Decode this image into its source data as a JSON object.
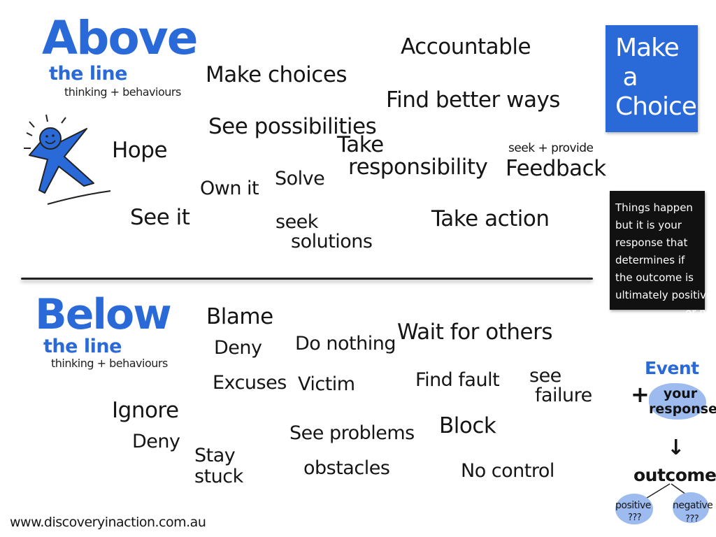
{
  "above": {
    "title": "Above",
    "subtitle": "the line",
    "caption": "thinking + behaviours",
    "words": {
      "accountable": "Accountable",
      "make_choices": "Make choices",
      "find_better_ways": "Find better ways",
      "see_possibilities": "See possibilities",
      "hope": "Hope",
      "take_responsibility_1": "Take",
      "take_responsibility_2": "responsibility",
      "seek_provide": "seek + provide",
      "feedback": "Feedback",
      "own_it": "Own it",
      "solve": "Solve",
      "see_it": "See it",
      "seek": "seek",
      "solutions": "solutions",
      "take_action": "Take action"
    }
  },
  "below": {
    "title": "Below",
    "subtitle": "the line",
    "caption": "thinking + behaviours",
    "words": {
      "blame": "Blame",
      "deny": "Deny",
      "do_nothing": "Do nothing",
      "wait_for_others": "Wait for others",
      "excuses": "Excuses",
      "victim": "Victim",
      "find_fault": "Find fault",
      "see": "see",
      "failure": "failure",
      "ignore": "Ignore",
      "deny2": "Deny",
      "stay": "Stay",
      "stuck": "stuck",
      "see_problems": "See problems",
      "obstacles": "obstacles",
      "block": "Block",
      "no_control": "No control"
    }
  },
  "make_choice": "Make\n a\nChoice !",
  "things_happen": "Things happen\nbut it is your\nresponse that\ndetermines if\nthe outcome is\nultimately positive\n                     or negative",
  "event_flow": {
    "event": "Event",
    "plus": "+",
    "your_response": "your\nresponse",
    "arrow": "↓",
    "outcome": "outcome",
    "positive": "positive",
    "negative": "negative",
    "question_marks": "???"
  },
  "website": "www.discoveryinaction.com.au",
  "colors": {
    "accent_blue": "#2a6ad8",
    "light_blue": "#9dbbee",
    "ink": "#151515"
  }
}
